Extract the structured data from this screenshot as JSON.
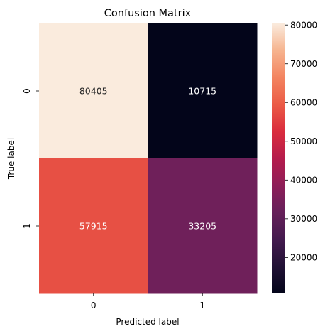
{
  "chart_data": {
    "type": "heatmap",
    "title": "Confusion Matrix",
    "xlabel": "Predicted label",
    "ylabel": "True label",
    "x_categories": [
      "0",
      "1"
    ],
    "y_categories": [
      "0",
      "1"
    ],
    "values": [
      [
        80405,
        10715
      ],
      [
        57915,
        33205
      ]
    ],
    "colormap": "rocket",
    "colorbar": {
      "range": [
        10715,
        80405
      ],
      "ticks": [
        20000,
        30000,
        40000,
        50000,
        60000,
        70000,
        80000
      ],
      "tick_labels": [
        "20000",
        "30000",
        "40000",
        "50000",
        "60000",
        "70000",
        "80000"
      ]
    },
    "grid": false
  }
}
